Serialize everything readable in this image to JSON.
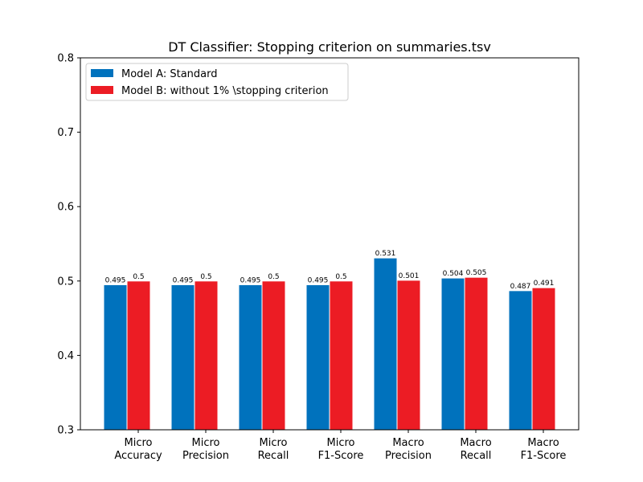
{
  "chart_data": {
    "type": "bar",
    "title": "DT Classifier: Stopping criterion on summaries.tsv",
    "xlabel": "",
    "ylabel": "",
    "ylim": [
      0.3,
      0.8
    ],
    "yticks": [
      "0.3",
      "0.4",
      "0.5",
      "0.6",
      "0.7",
      "0.8"
    ],
    "categories": [
      [
        "Micro",
        "Accuracy"
      ],
      [
        "Micro",
        "Precision"
      ],
      [
        "Micro",
        "Recall"
      ],
      [
        "Micro",
        "F1-Score"
      ],
      [
        "Macro",
        "Precision"
      ],
      [
        "Macro",
        "Recall"
      ],
      [
        "Macro",
        "F1-Score"
      ]
    ],
    "series": [
      {
        "name": "Model A: Standard",
        "color": "#0072bd",
        "values": [
          0.495,
          0.495,
          0.495,
          0.495,
          0.531,
          0.504,
          0.487
        ],
        "labels": [
          "0.495",
          "0.495",
          "0.495",
          "0.495",
          "0.531",
          "0.504",
          "0.487"
        ]
      },
      {
        "name": "Model B: without 1% \\stopping criterion",
        "color": "#ec1c24",
        "values": [
          0.5,
          0.5,
          0.5,
          0.5,
          0.501,
          0.505,
          0.491
        ],
        "labels": [
          "0.5",
          "0.5",
          "0.5",
          "0.5",
          "0.501",
          "0.505",
          "0.491"
        ]
      }
    ],
    "legend": "top-left",
    "grid": false
  }
}
